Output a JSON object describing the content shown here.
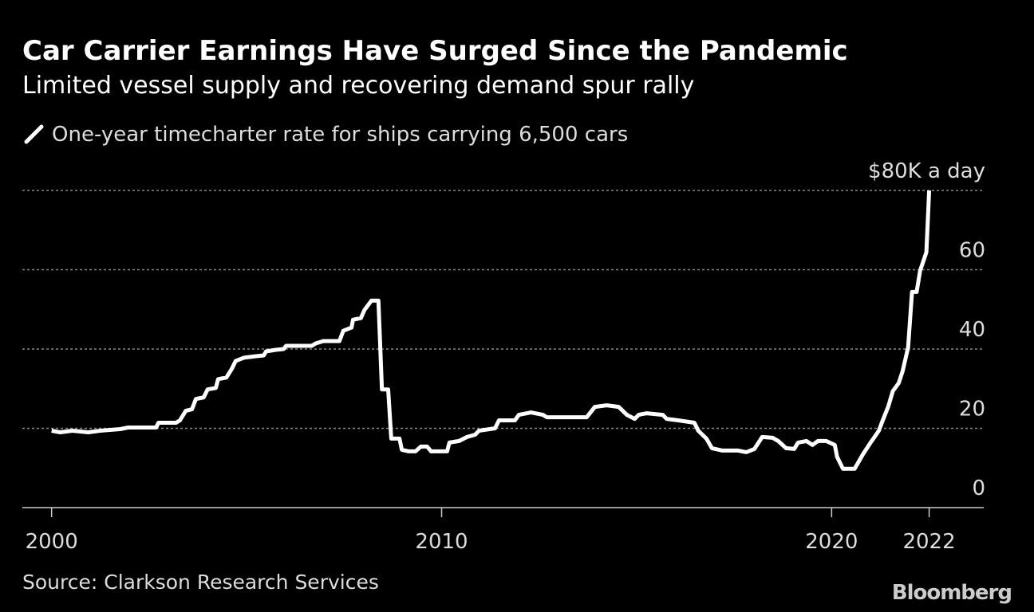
{
  "chart_data": {
    "type": "line",
    "title": "Car Carrier Earnings Have Surged Since the Pandemic",
    "subtitle": "Limited vessel supply and recovering demand spur rally",
    "source": "Source: Clarkson Research Services",
    "brand": "Bloomberg",
    "series": [
      {
        "name": "One-year timecharter rate for ships carrying 6,500 cars",
        "color": "#ffffff",
        "x": [
          2000,
          2000.22,
          2000.53,
          2000.94,
          2001.25,
          2001.76,
          2001.96,
          2002.68,
          2002.74,
          2003.19,
          2003.29,
          2003.44,
          2003.6,
          2003.7,
          2003.9,
          2004.0,
          2004.21,
          2004.27,
          2004.48,
          2004.62,
          2004.72,
          2004.93,
          2005.24,
          2005.44,
          2005.5,
          2005.75,
          2005.95,
          2006.01,
          2006.67,
          2006.77,
          2006.97,
          2007.38,
          2007.48,
          2007.69,
          2007.73,
          2007.93,
          2008.02,
          2008.2,
          2008.38,
          2008.47,
          2008.63,
          2008.71,
          2008.92,
          2008.98,
          2009.16,
          2009.33,
          2009.47,
          2009.63,
          2009.73,
          2010.14,
          2010.2,
          2010.45,
          2010.65,
          2010.86,
          2010.96,
          2011.37,
          2011.47,
          2011.88,
          2011.98,
          2012.29,
          2012.6,
          2012.7,
          2013.72,
          2013.93,
          2014.23,
          2014.54,
          2014.75,
          2014.95,
          2015.05,
          2015.26,
          2015.67,
          2015.77,
          2016.07,
          2016.48,
          2016.58,
          2016.79,
          2016.93,
          2017.2,
          2017.6,
          2017.81,
          2018.02,
          2018.22,
          2018.49,
          2018.63,
          2018.83,
          2019.04,
          2019.14,
          2019.35,
          2019.51,
          2019.65,
          2019.86,
          2020.08,
          2020.14,
          2020.29,
          2020.59,
          2020.8,
          2021.0,
          2021.21,
          2021.31,
          2021.45,
          2021.57,
          2021.72,
          2021.82,
          2021.96,
          2022.06,
          2022.18,
          2022.27,
          2022.43,
          2022.5
        ],
        "values": [
          19.4,
          19,
          19.4,
          19,
          19.4,
          19.8,
          20.2,
          20.2,
          21.4,
          21.4,
          22,
          24.4,
          24.8,
          27.4,
          27.8,
          29.8,
          30.2,
          32.4,
          32.8,
          35,
          37,
          37.8,
          38.2,
          38.4,
          39.4,
          39.8,
          40,
          40.8,
          40.8,
          41.4,
          42,
          42,
          44.6,
          45.4,
          47.4,
          47.8,
          49.8,
          52.2,
          52.2,
          29.8,
          29.8,
          17.4,
          17.4,
          14.6,
          14.2,
          14.2,
          15.4,
          15.4,
          14.2,
          14.2,
          16.4,
          16.8,
          17.8,
          18.4,
          19.4,
          20,
          22,
          22,
          23.4,
          24,
          23.4,
          22.8,
          22.8,
          25.4,
          25.8,
          25.4,
          23.4,
          22.4,
          23.4,
          23.8,
          23.4,
          22.4,
          22,
          21.4,
          19.4,
          17.4,
          15,
          14.4,
          14.4,
          14,
          14.8,
          17.8,
          17.6,
          16.8,
          15,
          14.8,
          16.4,
          16.8,
          15.8,
          16.8,
          16.8,
          15.8,
          12.8,
          9.8,
          9.8,
          13.4,
          16.4,
          19.4,
          22,
          25.4,
          29.4,
          31.4,
          34.4,
          40.4,
          54.4,
          54.4,
          59.8,
          64.4,
          80
        ]
      }
    ],
    "xlim": [
      1999.25,
      2023.9
    ],
    "xticks": [
      2000,
      2010,
      2020,
      {
        "value": 2022.5,
        "label": "2022"
      }
    ],
    "ylim": [
      0,
      80
    ],
    "yticks": [
      0,
      20,
      40,
      60,
      {
        "value": 80,
        "label": "$80K a day"
      }
    ],
    "grid": true
  }
}
